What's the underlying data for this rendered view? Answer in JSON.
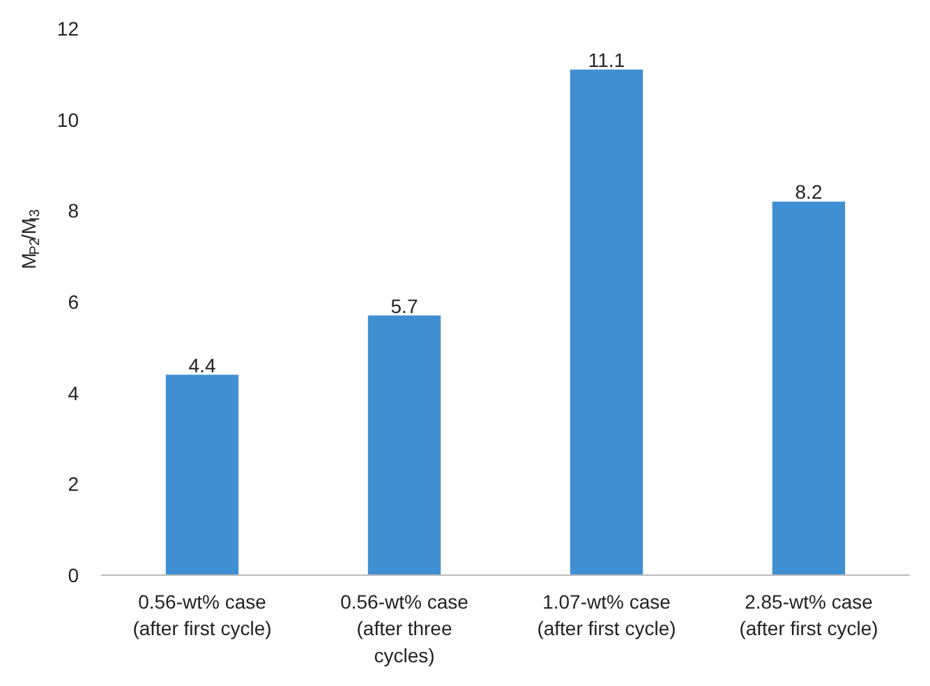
{
  "chart_data": {
    "type": "bar",
    "ylabel": "M$_{P2}$/M$_{I3}$",
    "categories": [
      "0.56-wt% case\n(after first cycle)",
      "0.56-wt% case\n(after three\ncycles)",
      "1.07-wt% case\n(after first cycle)",
      "2.85-wt% case\n(after first cycle)"
    ],
    "values": [
      4.4,
      5.7,
      11.1,
      8.2
    ],
    "color": "#418fd3",
    "data_labels": true,
    "ylim": [
      0,
      12
    ],
    "yticks": [
      0,
      2,
      4,
      6,
      8,
      10,
      12
    ],
    "grid": false
  }
}
